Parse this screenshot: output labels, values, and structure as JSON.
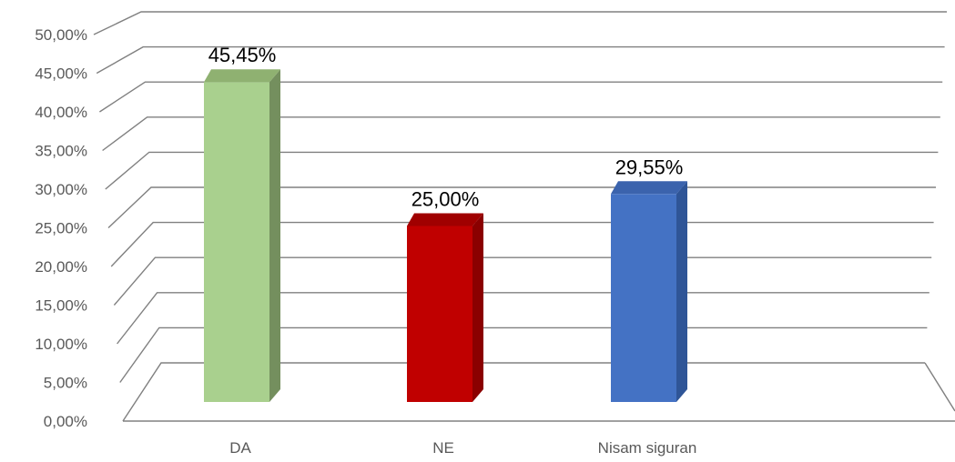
{
  "chart_data": {
    "type": "bar",
    "style": "3d-column",
    "categories": [
      "DA",
      "NE",
      "Nisam siguran"
    ],
    "values": [
      45.45,
      25.0,
      29.55
    ],
    "data_labels": [
      "45,45%",
      "25,00%",
      "29,55%"
    ],
    "y_ticks": [
      "0,00%",
      "5,00%",
      "10,00%",
      "15,00%",
      "20,00%",
      "25,00%",
      "30,00%",
      "35,00%",
      "40,00%",
      "45,00%",
      "50,00%"
    ],
    "ylim": [
      0,
      50
    ],
    "grid": true,
    "legend": "none",
    "colors": {
      "DA": "#a9d08e",
      "NE": "#c00000",
      "Nisam siguran": "#4472c4",
      "grid": "#808080"
    }
  }
}
